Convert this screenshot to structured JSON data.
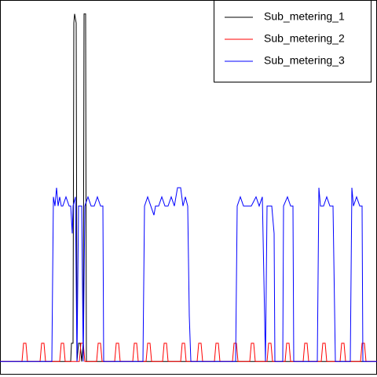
{
  "chart_data": {
    "type": "line",
    "xlim": [
      0,
      480
    ],
    "ylim": [
      -1.52,
      39.52
    ],
    "legend": "topright",
    "series": [
      {
        "name": "Sub_metering_1",
        "color": "#000000",
        "x": [
          0,
          90,
          91,
          93,
          94,
          95,
          97,
          98,
          100,
          102,
          104,
          106,
          107,
          109,
          110,
          112,
          480
        ],
        "values": [
          0,
          0,
          2,
          2,
          37,
          38,
          37,
          0,
          2,
          2,
          0,
          2,
          38,
          38,
          0,
          0,
          0
        ]
      },
      {
        "name": "Sub_metering_2",
        "color": "#ff0000",
        "x": [
          0,
          28,
          30,
          33,
          35,
          51,
          53,
          56,
          58,
          76,
          78,
          81,
          83,
          101,
          103,
          106,
          108,
          123,
          125,
          128,
          130,
          146,
          148,
          151,
          153,
          169,
          171,
          174,
          176,
          186,
          188,
          191,
          193,
          207,
          209,
          212,
          214,
          230,
          232,
          235,
          237,
          251,
          253,
          256,
          258,
          273,
          275,
          278,
          280,
          296,
          298,
          301,
          303,
          318,
          320,
          323,
          325,
          340,
          342,
          345,
          347,
          363,
          365,
          368,
          370,
          386,
          388,
          391,
          393,
          409,
          411,
          414,
          416,
          433,
          435,
          438,
          440,
          459,
          461,
          464,
          466,
          480
        ],
        "values": [
          0,
          0,
          2,
          2,
          0,
          0,
          2,
          2,
          0,
          0,
          2,
          2,
          0,
          0,
          2,
          2,
          0,
          0,
          2,
          2,
          0,
          0,
          2,
          2,
          0,
          0,
          2,
          2,
          0,
          0,
          2,
          2,
          0,
          0,
          2,
          2,
          0,
          0,
          2,
          2,
          0,
          0,
          2,
          2,
          0,
          0,
          2,
          2,
          0,
          0,
          2,
          2,
          0,
          0,
          2,
          2,
          0,
          0,
          2,
          2,
          0,
          0,
          2,
          2,
          0,
          0,
          2,
          2,
          0,
          0,
          2,
          2,
          0,
          0,
          2,
          2,
          0,
          0,
          2,
          2,
          0,
          0
        ]
      },
      {
        "name": "Sub_metering_3",
        "color": "#0000ff",
        "x": [
          0,
          66,
          68,
          70,
          72,
          74,
          76,
          78,
          80,
          84,
          88,
          90,
          92,
          93,
          96,
          98,
          100,
          104,
          106,
          108,
          112,
          116,
          120,
          124,
          128,
          131,
          132,
          182,
          184,
          188,
          192,
          196,
          198,
          202,
          206,
          210,
          214,
          218,
          222,
          226,
          230,
          233,
          236,
          239,
          241,
          243,
          300,
          302,
          306,
          310,
          316,
          320,
          326,
          330,
          334,
          338,
          340,
          346,
          349,
          350,
          360,
          361,
          366,
          370,
          373,
          374,
          404,
          406,
          408,
          412,
          416,
          420,
          424,
          427,
          446,
          448,
          450,
          454,
          458,
          461,
          462,
          480
        ],
        "values": [
          0,
          0,
          18,
          17,
          19,
          17,
          18,
          17,
          17,
          18,
          17,
          17,
          14,
          17,
          18,
          0,
          17,
          17,
          0,
          17,
          18,
          17,
          17,
          18,
          17,
          17,
          0,
          0,
          17,
          18,
          17,
          16,
          17,
          17,
          18,
          17,
          17,
          18,
          17,
          19,
          19,
          17,
          18,
          17,
          5,
          0,
          0,
          17,
          18,
          17,
          17,
          17,
          18,
          17,
          18,
          0,
          17,
          17,
          14,
          0,
          0,
          17,
          18,
          17,
          17,
          0,
          0,
          19,
          17,
          17,
          18,
          17,
          17,
          0,
          0,
          19,
          17,
          18,
          17,
          17,
          0,
          0
        ]
      }
    ]
  }
}
